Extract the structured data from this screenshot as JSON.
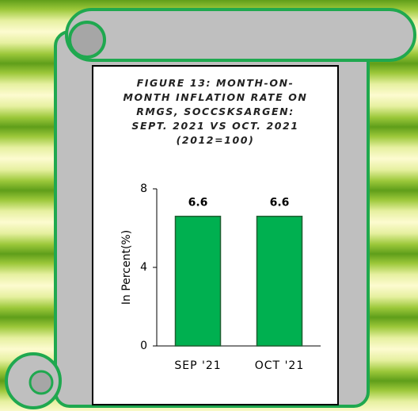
{
  "chart_data": {
    "type": "bar",
    "title": "FIGURE 13: MONTH-ON-MONTH INFLATION RATE ON RMGS, SOCCSKSARGEN: SEPT. 2021 VS OCT. 2021 (2012=100)",
    "y_label": "In Percent(%)",
    "categories": [
      "SEP '21",
      "OCT '21"
    ],
    "values": [
      6.6,
      6.6
    ],
    "color": "#00b050",
    "ylim": [
      0,
      8
    ],
    "yticks": [
      0,
      4,
      8
    ]
  }
}
